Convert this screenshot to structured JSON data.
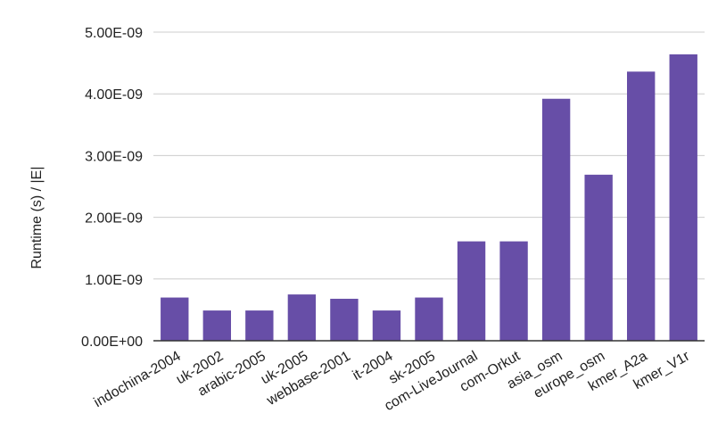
{
  "chart_data": {
    "type": "bar",
    "title": "",
    "xlabel": "",
    "ylabel": "Runtime (s) / |E|",
    "ylim": [
      0,
      5e-09
    ],
    "yticks": [
      {
        "value": 0,
        "label": "0.00E+00"
      },
      {
        "value": 1e-09,
        "label": "1.00E-09"
      },
      {
        "value": 2e-09,
        "label": "2.00E-09"
      },
      {
        "value": 3e-09,
        "label": "3.00E-09"
      },
      {
        "value": 4e-09,
        "label": "4.00E-09"
      },
      {
        "value": 5e-09,
        "label": "5.00E-09"
      }
    ],
    "grid": true,
    "legend": "none",
    "categories": [
      "indochina-2004",
      "uk-2002",
      "arabic-2005",
      "uk-2005",
      "webbase-2001",
      "it-2004",
      "sk-2005",
      "com-LiveJournal",
      "com-Orkut",
      "asia_osm",
      "europe_osm",
      "kmer_A2a",
      "kmer_V1r"
    ],
    "values": [
      7e-10,
      4.9e-10,
      4.9e-10,
      7.5e-10,
      6.8e-10,
      4.9e-10,
      7e-10,
      1.61e-09,
      1.61e-09,
      3.92e-09,
      2.69e-09,
      4.36e-09,
      4.64e-09
    ],
    "bar_color": "#674ea7",
    "grid_color": "#cccccc",
    "axis_color": "#333333"
  }
}
